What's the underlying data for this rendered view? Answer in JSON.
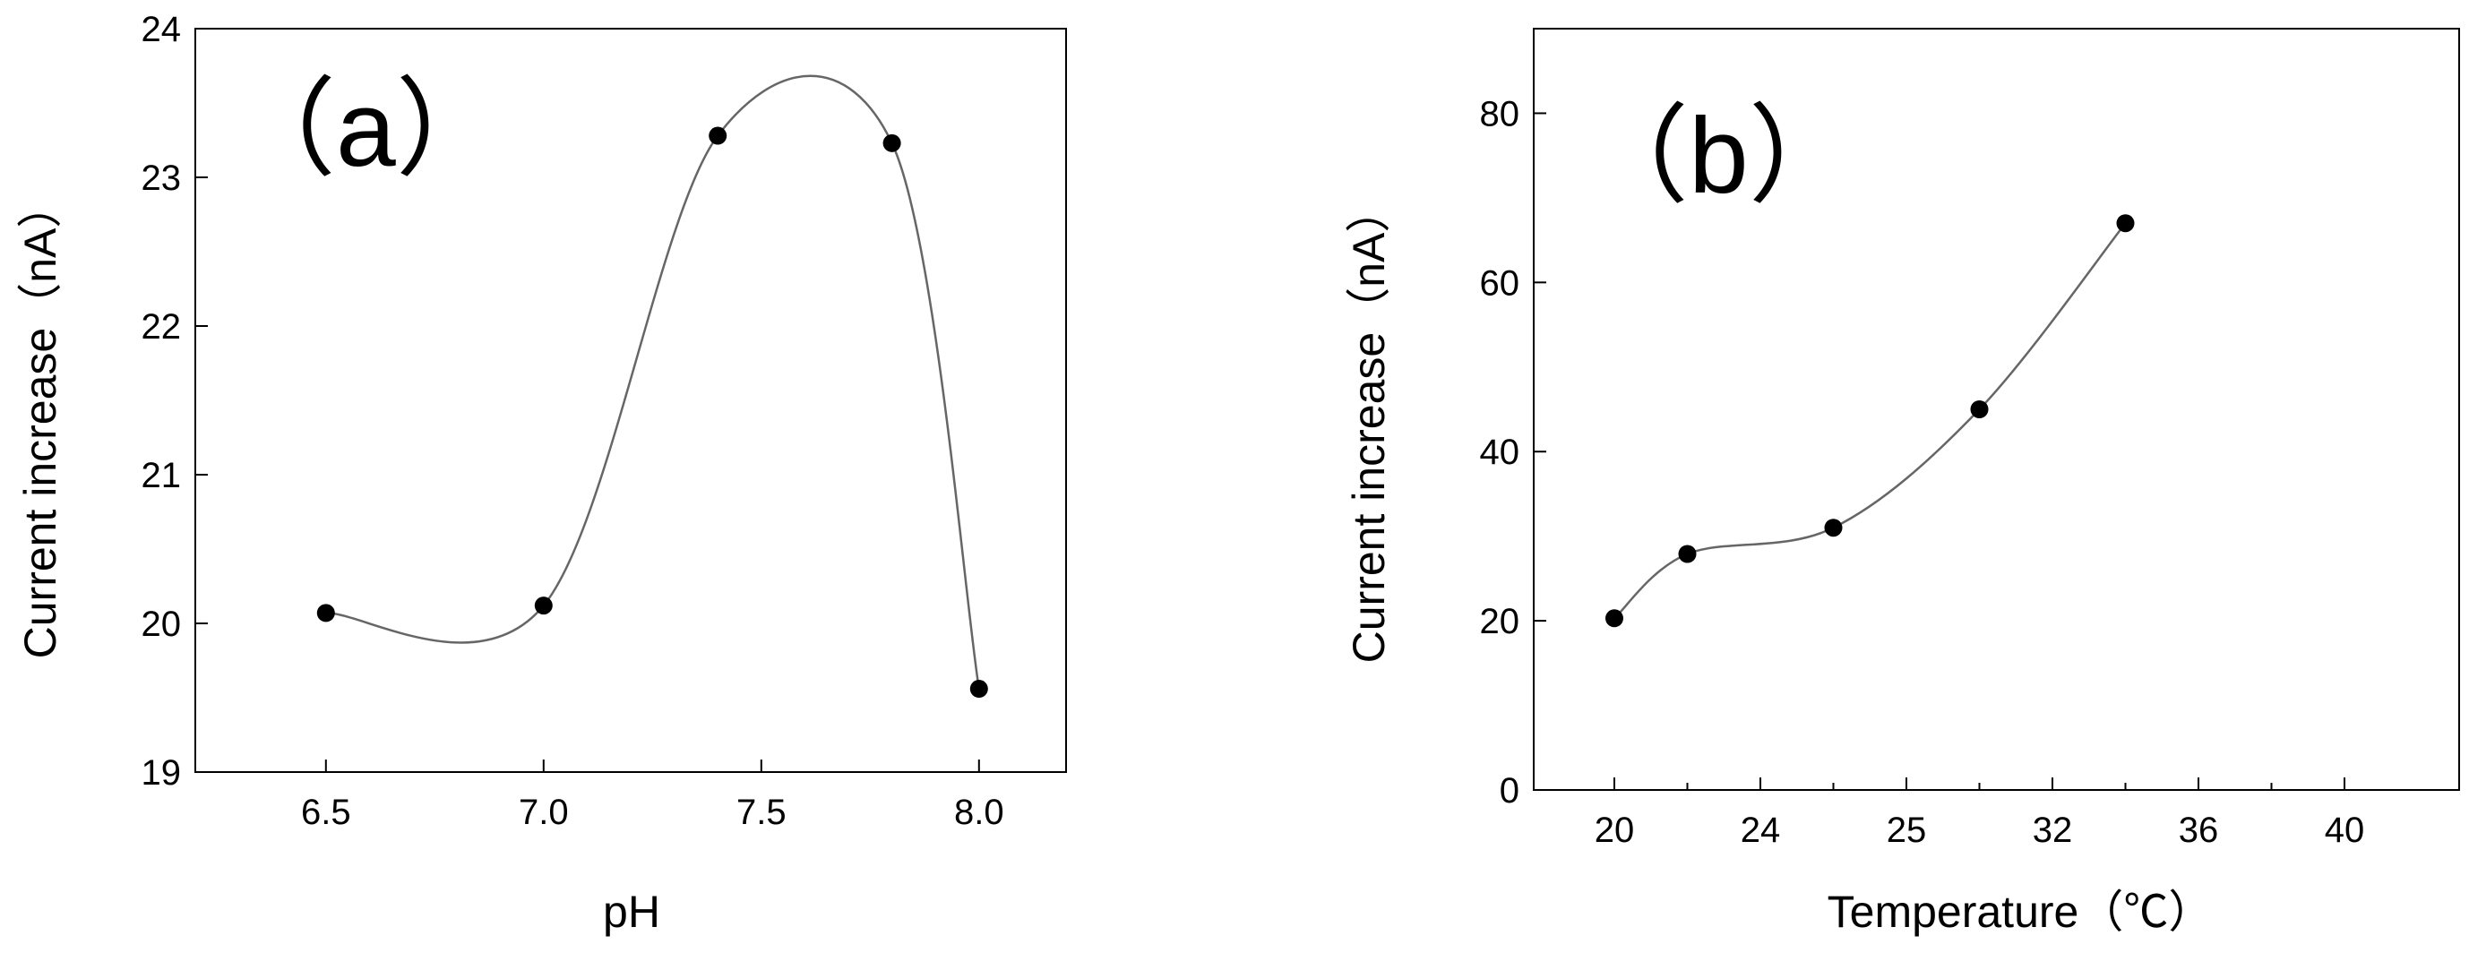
{
  "chart_data": [
    {
      "type": "line",
      "panel_label": "（a）",
      "xlabel": "pH",
      "ylabel": "Current increase（nA）",
      "x": [
        6.5,
        7.0,
        7.4,
        7.8,
        8.0
      ],
      "values": [
        20.07,
        20.12,
        23.28,
        23.23,
        19.56
      ],
      "xlim": [
        6.2,
        8.2
      ],
      "ylim": [
        19,
        24
      ],
      "xticks": [
        6.5,
        7.0,
        7.5,
        8.0
      ],
      "xtick_labels": [
        "6.5",
        "7.0",
        "7.5",
        "8.0"
      ],
      "yticks": [
        19,
        20,
        21,
        22,
        23,
        24
      ],
      "ytick_labels": [
        "19",
        "20",
        "21",
        "22",
        "23",
        "24"
      ],
      "grid": false,
      "smooth": true
    },
    {
      "type": "line",
      "panel_label": "（b）",
      "xlabel": "Temperature（℃）",
      "ylabel": "Current increase（nA）",
      "categories": [
        "20",
        "24",
        "25",
        "32",
        "36",
        "40"
      ],
      "points": [
        {
          "x": "20",
          "y": 20.3
        },
        {
          "x": "24",
          "y": 27.9
        },
        {
          "x": "32",
          "y": 31.0
        },
        {
          "x": "36",
          "y": 45.0
        },
        {
          "x": "40",
          "y": 67.0
        }
      ],
      "point_positions": [
        0,
        0.5,
        1.5,
        2.5,
        3.5
      ],
      "ylim": [
        0,
        90
      ],
      "yticks": [
        0,
        20,
        40,
        60,
        80
      ],
      "ytick_labels": [
        "0",
        "20",
        "40",
        "60",
        "80"
      ],
      "grid": false,
      "smooth": true
    }
  ]
}
